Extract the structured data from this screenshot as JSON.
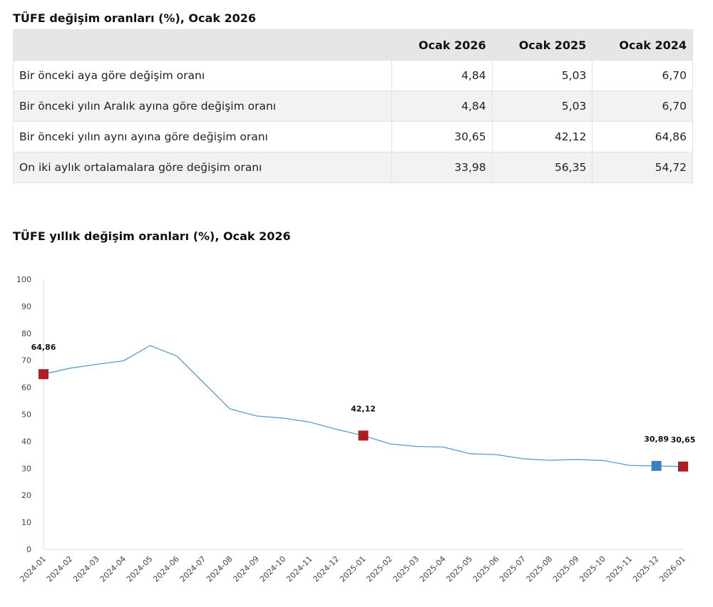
{
  "table": {
    "title": "TÜFE değişim oranları (%), Ocak 2026",
    "headers": [
      "",
      "Ocak 2026",
      "Ocak 2025",
      "Ocak 2024"
    ],
    "rows": [
      {
        "label": "Bir önceki aya göre değişim oranı",
        "values": [
          "4,84",
          "5,03",
          "6,70"
        ]
      },
      {
        "label": "Bir önceki yılın Aralık ayına göre değişim oranı",
        "values": [
          "4,84",
          "5,03",
          "6,70"
        ]
      },
      {
        "label": "Bir önceki yılın aynı ayına göre değişim oranı",
        "values": [
          "30,65",
          "42,12",
          "64,86"
        ]
      },
      {
        "label": "On iki aylık ortalamalara göre değişim oranı",
        "values": [
          "33,98",
          "56,35",
          "54,72"
        ]
      }
    ]
  },
  "chart_data": {
    "type": "line",
    "title": "TÜFE yıllık değişim oranları (%), Ocak 2026",
    "xlabel": "",
    "ylabel": "",
    "ylim": [
      0,
      100
    ],
    "yticks": [
      "0",
      "10",
      "20",
      "30",
      "40",
      "50",
      "60",
      "70",
      "80",
      "90",
      "100"
    ],
    "grid": false,
    "x": [
      "2024-01",
      "2024-02",
      "2024-03",
      "2024-04",
      "2024-05",
      "2024-06",
      "2024-07",
      "2024-08",
      "2024-09",
      "2024-10",
      "2024-11",
      "2024-12",
      "2025-01",
      "2025-02",
      "2025-03",
      "2025-04",
      "2025-05",
      "2025-06",
      "2025-07",
      "2025-08",
      "2025-09",
      "2025-10",
      "2025-11",
      "2025-12",
      "2026-01"
    ],
    "series": [
      {
        "values": [
          64.86,
          67.07,
          68.5,
          69.8,
          75.45,
          71.6,
          61.78,
          51.97,
          49.38,
          48.58,
          47.09,
          44.38,
          42.12,
          39.05,
          38.1,
          37.86,
          35.41,
          35.05,
          33.52,
          32.95,
          33.29,
          32.87,
          31.07,
          30.89,
          30.65
        ],
        "color": "#5b9bc8"
      }
    ],
    "markers": [
      {
        "index": 0,
        "label": "64,86",
        "color": "#b01c22"
      },
      {
        "index": 12,
        "label": "42,12",
        "color": "#b01c22"
      },
      {
        "index": 23,
        "label": "30,89",
        "color": "#3a7fc1"
      },
      {
        "index": 24,
        "label": "30,65",
        "color": "#b01c22"
      }
    ]
  }
}
